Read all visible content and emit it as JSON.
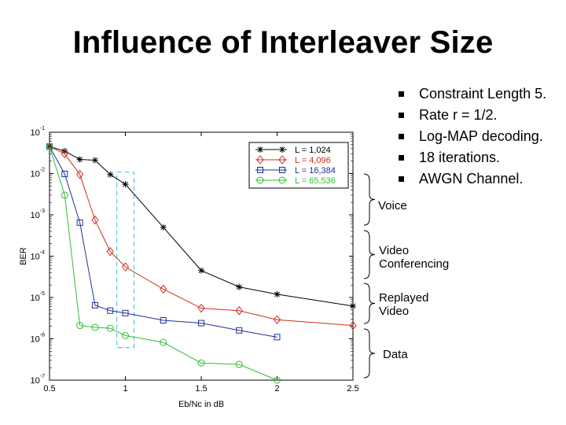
{
  "slide": {
    "title": "Influence of Interleaver Size"
  },
  "bullets": [
    "Constraint Length 5.",
    "Rate r = 1/2.",
    "Log-MAP decoding.",
    "18 iterations.",
    "AWGN Channel."
  ],
  "annotations": [
    {
      "line1": "Voice",
      "line2": ""
    },
    {
      "line1": "Video",
      "line2": "Conferencing"
    },
    {
      "line1": "Replayed",
      "line2": "Video"
    },
    {
      "line1": "Data",
      "line2": ""
    }
  ],
  "chart_data": {
    "type": "line",
    "title": "",
    "xlabel": "Eb/Nc in dB",
    "ylabel": "BER",
    "xlim": [
      0.5,
      2.5
    ],
    "ylim_log10": [
      -7,
      -1
    ],
    "yscale": "log",
    "xticks": [
      0.5,
      1,
      1.5,
      2,
      2.5
    ],
    "xtick_labels": [
      "0.5",
      "1",
      "1.5",
      "2",
      "2.5"
    ],
    "yticks_exp": [
      -1,
      -2,
      -3,
      -4,
      -5,
      -6,
      -7
    ],
    "legend_position": "top-right",
    "series": [
      {
        "name": "L = 1,024",
        "color": "#000000",
        "marker": "star",
        "x": [
          0.5,
          0.6,
          0.7,
          0.8,
          0.9,
          1.0,
          1.25,
          1.5,
          1.75,
          2.0,
          2.5
        ],
        "y": [
          0.045,
          0.035,
          0.022,
          0.021,
          0.0095,
          0.0055,
          0.0005,
          4.5e-05,
          1.8e-05,
          1.2e-05,
          6.2e-06
        ]
      },
      {
        "name": "L = 4,096",
        "color": "#d22d1e",
        "marker": "diamond",
        "x": [
          0.5,
          0.6,
          0.7,
          0.8,
          0.9,
          1.0,
          1.25,
          1.5,
          1.75,
          2.0,
          2.5
        ],
        "y": [
          0.045,
          0.03,
          0.0095,
          0.00075,
          0.00013,
          5.5e-05,
          1.6e-05,
          5.5e-06,
          4.8e-06,
          2.9e-06,
          2.1e-06
        ]
      },
      {
        "name": "L = 16,384",
        "color": "#1f2f9a",
        "marker": "square",
        "x": [
          0.5,
          0.6,
          0.7,
          0.8,
          0.9,
          1.0,
          1.25,
          1.5,
          1.75,
          2.0
        ],
        "y": [
          0.045,
          0.0098,
          0.00065,
          6.5e-06,
          4.8e-06,
          4.2e-06,
          2.8e-06,
          2.4e-06,
          1.6e-06,
          1.1e-06
        ]
      },
      {
        "name": "L = 65,536",
        "color": "#2fbf2f",
        "marker": "circle",
        "x": [
          0.5,
          0.6,
          0.7,
          0.8,
          0.9,
          1.0,
          1.25,
          1.5,
          1.75,
          2.0
        ],
        "y": [
          0.045,
          0.003,
          2.1e-06,
          1.9e-06,
          1.8e-06,
          1.2e-06,
          8.2e-07,
          2.6e-07,
          2.4e-07,
          1e-07
        ]
      }
    ]
  }
}
